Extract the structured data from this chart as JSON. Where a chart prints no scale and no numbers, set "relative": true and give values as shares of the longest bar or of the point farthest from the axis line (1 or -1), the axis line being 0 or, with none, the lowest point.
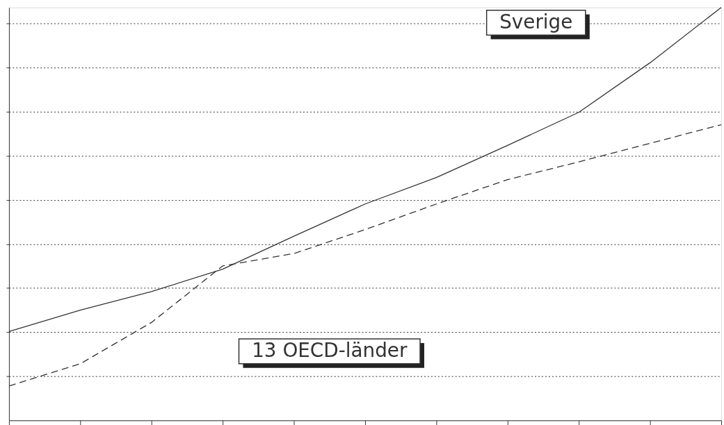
{
  "chart_data": {
    "type": "line",
    "relative": true,
    "categories": [
      null,
      null,
      null,
      null,
      null,
      null,
      null,
      null,
      null,
      null,
      null
    ],
    "series": [
      {
        "name": "Sverige",
        "color": "#333333",
        "line_style": "solid",
        "values": [
          0.215,
          0.267,
          0.312,
          0.366,
          0.446,
          0.524,
          0.588,
          0.666,
          0.746,
          0.866,
          1
        ]
      },
      {
        "name": "13 OECD-länder",
        "color": "#333333",
        "line_style": "dashed",
        "values": [
          0.083,
          0.137,
          0.237,
          0.374,
          0.404,
          0.462,
          0.524,
          0.583,
          0.626,
          0.671,
          0.716
        ]
      }
    ],
    "grid": "y",
    "legend": false,
    "marker": "none",
    "tick_labels": false
  }
}
